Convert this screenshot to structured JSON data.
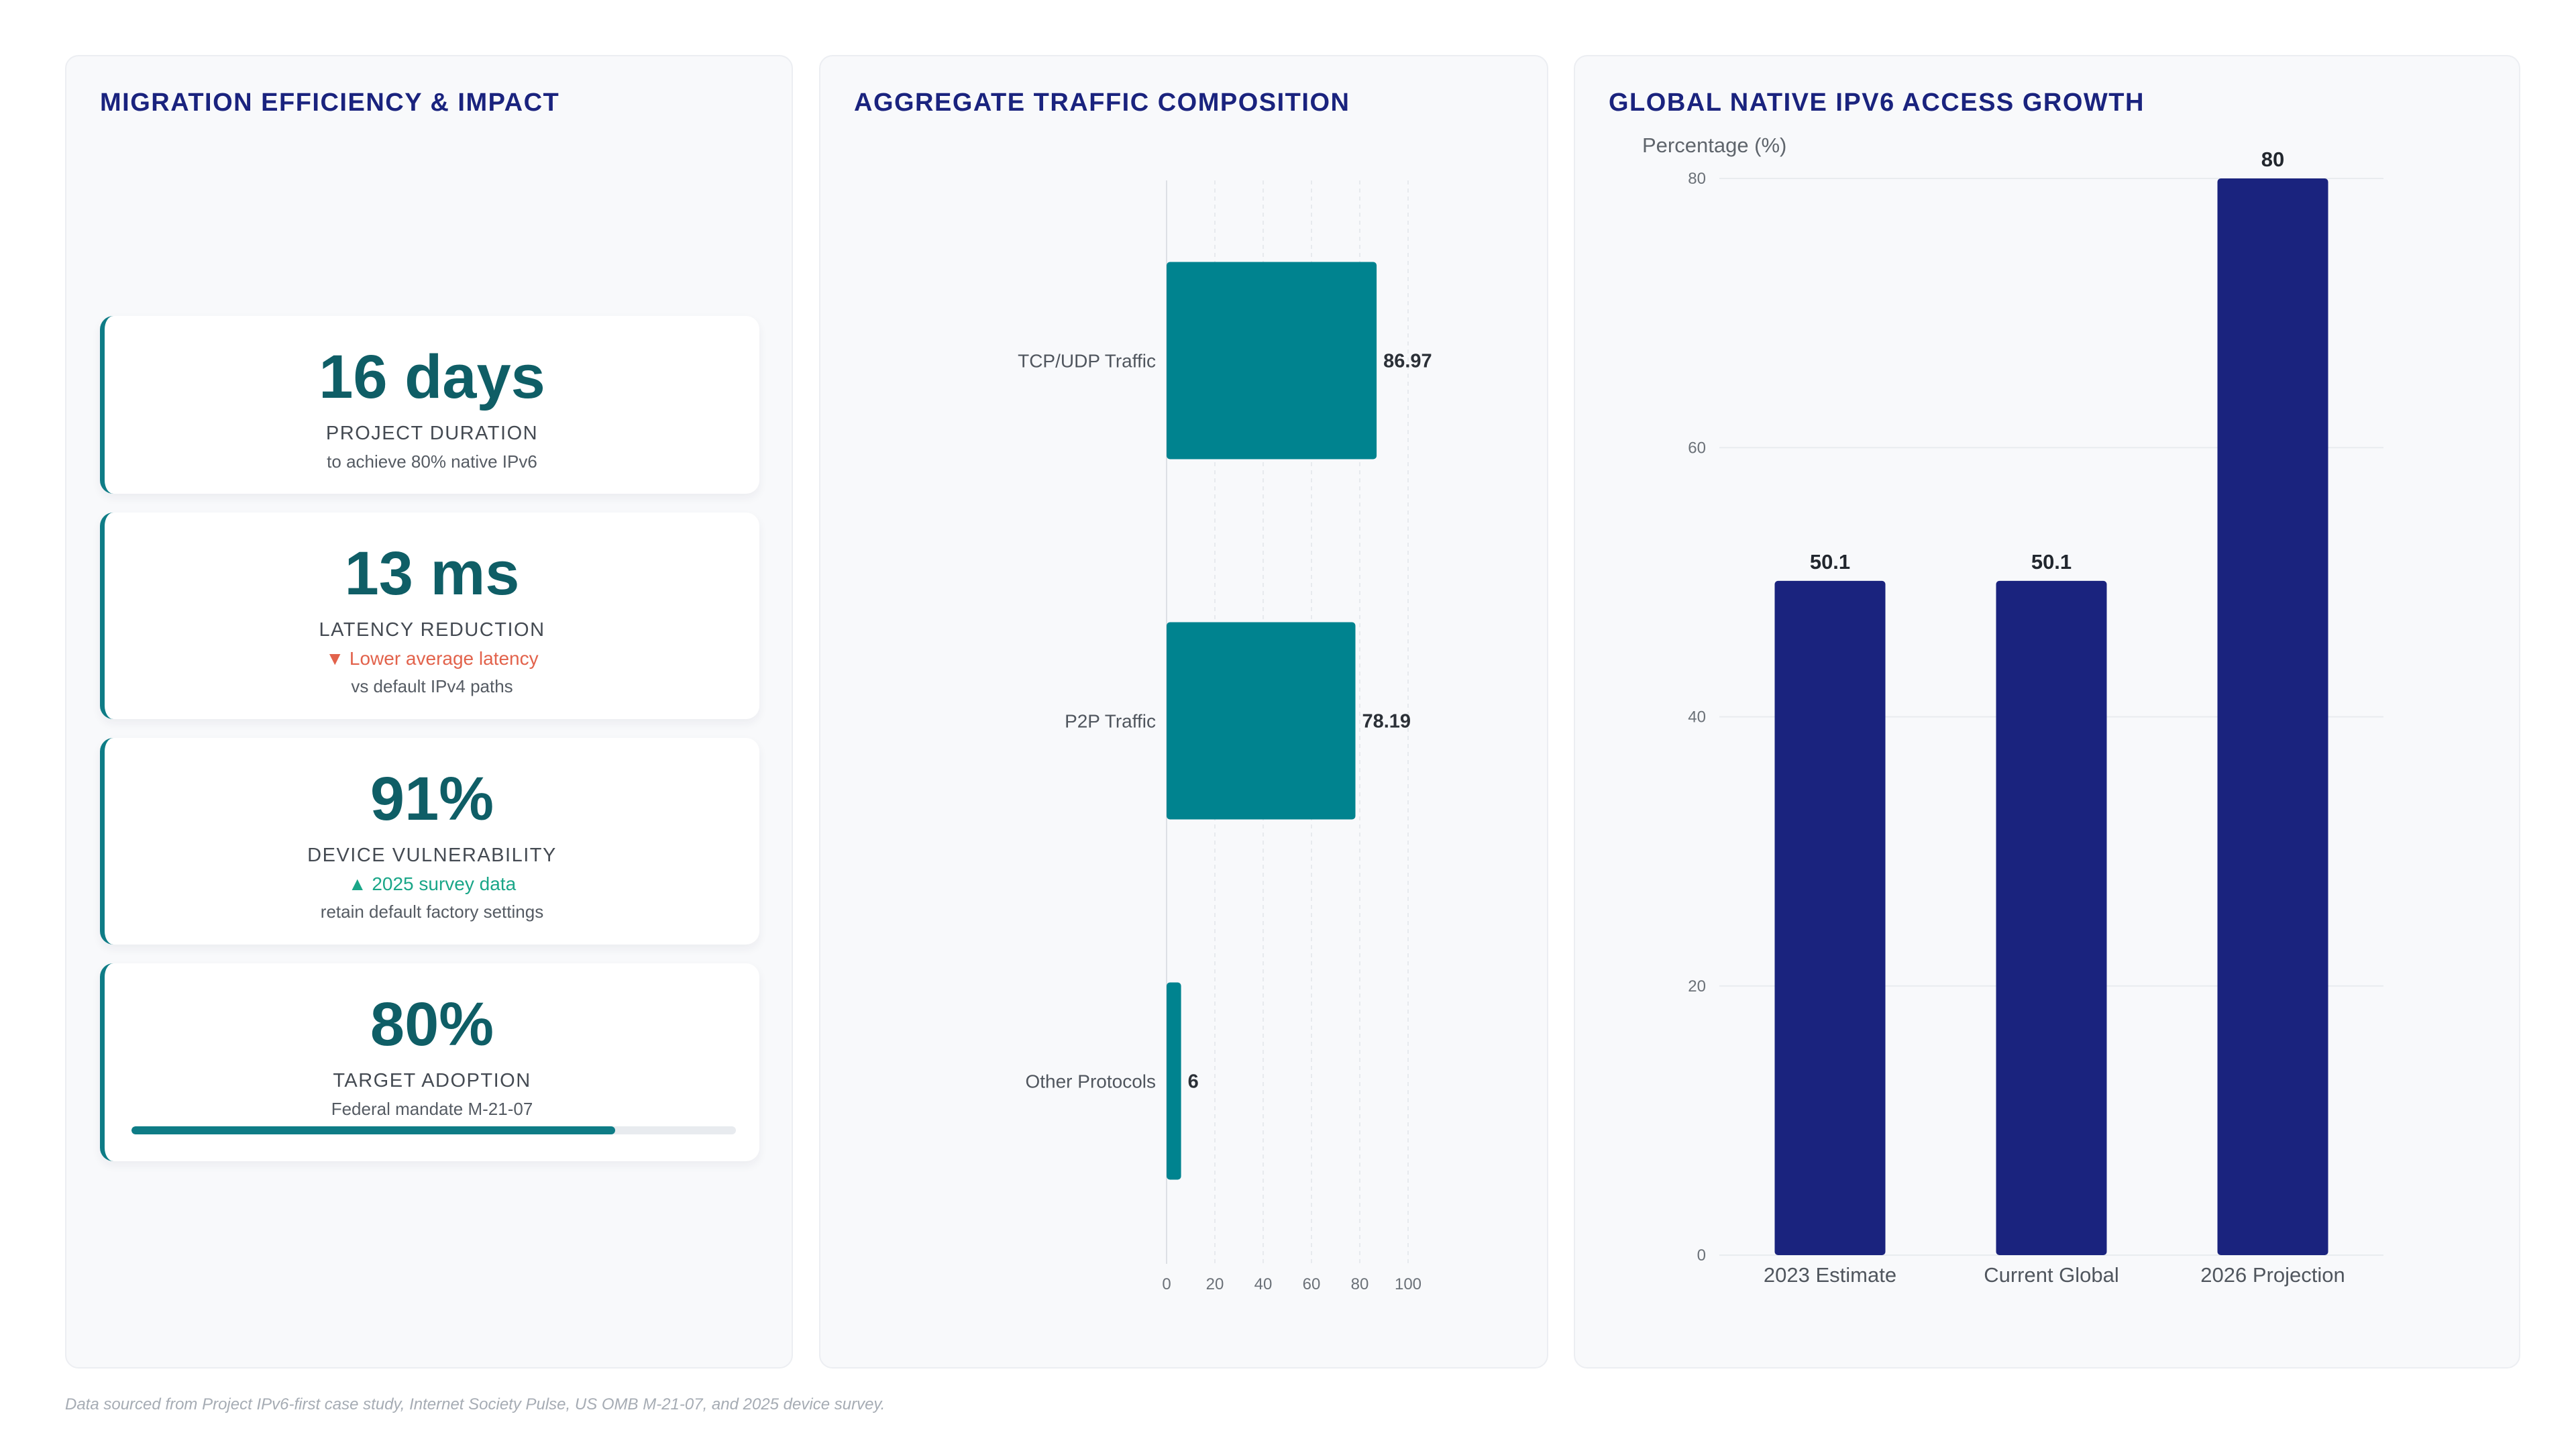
{
  "panels": {
    "kpi": {
      "title": "MIGRATION EFFICIENCY & IMPACT"
    },
    "traffic": {
      "title": "AGGREGATE TRAFFIC COMPOSITION"
    },
    "growth": {
      "title": "GLOBAL NATIVE IPV6 ACCESS GROWTH"
    }
  },
  "kpis": [
    {
      "value": "16 days",
      "label": "PROJECT DURATION",
      "sub": "to achieve 80% native IPv6"
    },
    {
      "value": "13 ms",
      "label": "LATENCY REDUCTION",
      "trend": "▼ Lower average latency",
      "sub": "vs default IPv4 paths"
    },
    {
      "value": "91%",
      "label": "DEVICE VULNERABILITY",
      "trend": "▲ 2025 survey data",
      "sub": "retain default factory settings"
    },
    {
      "value": "80%",
      "label": "TARGET ADOPTION",
      "sub": "Federal mandate M-21-07",
      "progress": 80
    }
  ],
  "chart_data": [
    {
      "type": "bar",
      "orientation": "horizontal",
      "title": "AGGREGATE TRAFFIC COMPOSITION",
      "categories": [
        "TCP/UDP Traffic",
        "P2P Traffic",
        "Other Protocols"
      ],
      "values": [
        86.97,
        78.19,
        6
      ],
      "xlim": [
        0,
        100
      ],
      "xticks": [
        0,
        20,
        40,
        60,
        80,
        100
      ],
      "grid": true,
      "color": "#00838f"
    },
    {
      "type": "bar",
      "orientation": "vertical",
      "title": "GLOBAL NATIVE IPV6 ACCESS GROWTH",
      "ylabel": "Percentage (%)",
      "categories": [
        "2023 Estimate",
        "Current Global",
        "2026 Projection"
      ],
      "values": [
        50.1,
        50.1,
        80
      ],
      "ylim": [
        0,
        80
      ],
      "yticks": [
        0,
        20,
        40,
        60,
        80
      ],
      "grid": true,
      "color": "#1a237e"
    }
  ],
  "footnote": "Data sourced from Project IPv6-first case study, Internet Society Pulse, US OMB M-21-07, and 2025 device survey."
}
